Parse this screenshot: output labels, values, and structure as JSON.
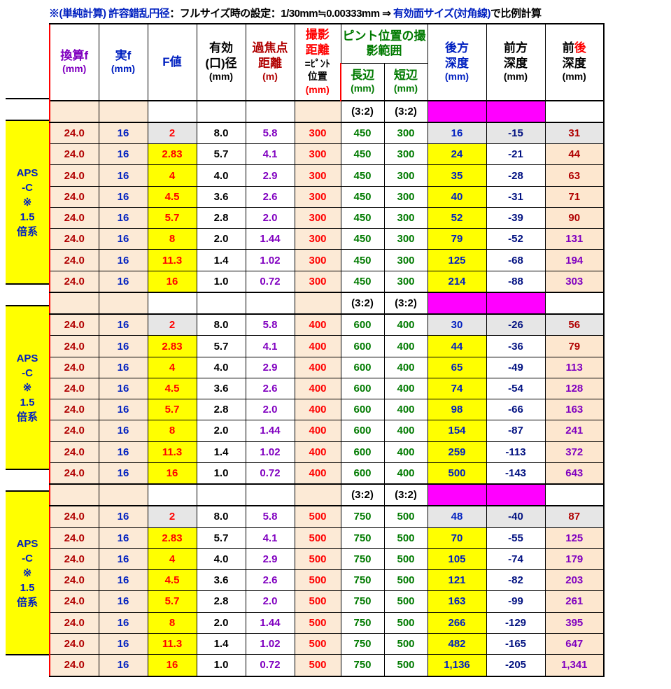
{
  "note": {
    "prefix": "※(単純計算) ",
    "mid_blue1": "許容錯乱円径",
    "mid_black": "：フルサイズ時の設定：1/30mm≒0.00333mm ⇒ ",
    "mid_blue2": "有効面サイズ(対角線)",
    "suffix": "で比例計算"
  },
  "left_label": {
    "l1": "APS",
    "l2": "-C",
    "l3": "※",
    "l4": "1.5",
    "l5": "倍系"
  },
  "headers": {
    "c0": {
      "main": "換算f",
      "sub": "(mm)"
    },
    "c1": {
      "main": "実f",
      "sub": "(mm)"
    },
    "c2": {
      "main": "F値",
      "sub": ""
    },
    "c3": {
      "main": "有効",
      "mid": "(口)径",
      "sub": "(mm)"
    },
    "c4": {
      "main": "過焦点",
      "mid": "距離",
      "sub": "(m)"
    },
    "c5": {
      "main": "撮影",
      "mid": "距離",
      "mid2": "=ﾋﾟﾝﾄ",
      "mid3": "位置",
      "sub": "(mm)"
    },
    "c67top": "ピント位置の撮影範囲",
    "c6": {
      "main": "長辺",
      "sub": "(mm)"
    },
    "c7": {
      "main": "短辺",
      "sub": "(mm)"
    },
    "c8": {
      "main": "後方",
      "mid": "深度",
      "sub": "(mm)"
    },
    "c9": {
      "main": "前方",
      "mid": "深度",
      "sub": "(mm)"
    },
    "c10": {
      "pre": "前",
      "post": "後",
      "mid": "深度",
      "sub": "(mm)"
    }
  },
  "aspect": "(3:2)",
  "sections": [
    {
      "rows": [
        {
          "k": "24.0",
          "f": "16",
          "F": "2",
          "Fbg": "ltgrey",
          "ap": "8.0",
          "hyp": "5.8",
          "dist": "300",
          "L": "450",
          "S": "300",
          "back": "16",
          "bbg": "ltgrey",
          "front": "-15",
          "fbg": "ltgrey",
          "tot": "31",
          "tc": "darkred",
          "tbg": "ltgrey"
        },
        {
          "k": "24.0",
          "f": "16",
          "F": "2.83",
          "Fbg": "yellow",
          "ap": "5.7",
          "hyp": "4.1",
          "dist": "300",
          "L": "450",
          "S": "300",
          "back": "24",
          "bbg": "yellow",
          "front": "-21",
          "fbg": "white",
          "tot": "44",
          "tc": "darkred",
          "tbg": "peach"
        },
        {
          "k": "24.0",
          "f": "16",
          "F": "4",
          "Fbg": "yellow",
          "ap": "4.0",
          "hyp": "2.9",
          "dist": "300",
          "L": "450",
          "S": "300",
          "back": "35",
          "bbg": "yellow",
          "front": "-28",
          "fbg": "white",
          "tot": "63",
          "tc": "darkred",
          "tbg": "peach"
        },
        {
          "k": "24.0",
          "f": "16",
          "F": "4.5",
          "Fbg": "yellow",
          "ap": "3.6",
          "hyp": "2.6",
          "dist": "300",
          "L": "450",
          "S": "300",
          "back": "40",
          "bbg": "yellow",
          "front": "-31",
          "fbg": "white",
          "tot": "71",
          "tc": "darkred",
          "tbg": "peach"
        },
        {
          "k": "24.0",
          "f": "16",
          "F": "5.7",
          "Fbg": "yellow",
          "ap": "2.8",
          "hyp": "2.0",
          "dist": "300",
          "L": "450",
          "S": "300",
          "back": "52",
          "bbg": "yellow",
          "front": "-39",
          "fbg": "white",
          "tot": "90",
          "tc": "darkred",
          "tbg": "peach"
        },
        {
          "k": "24.0",
          "f": "16",
          "F": "8",
          "Fbg": "yellow",
          "ap": "2.0",
          "hyp": "1.44",
          "dist": "300",
          "L": "450",
          "S": "300",
          "back": "79",
          "bbg": "yellow",
          "front": "-52",
          "fbg": "white",
          "tot": "131",
          "tc": "purple",
          "tbg": "peach"
        },
        {
          "k": "24.0",
          "f": "16",
          "F": "11.3",
          "Fbg": "yellow",
          "ap": "1.4",
          "hyp": "1.02",
          "dist": "300",
          "L": "450",
          "S": "300",
          "back": "125",
          "bbg": "yellow",
          "front": "-68",
          "fbg": "white",
          "tot": "194",
          "tc": "purple",
          "tbg": "peach"
        },
        {
          "k": "24.0",
          "f": "16",
          "F": "16",
          "Fbg": "yellow",
          "ap": "1.0",
          "hyp": "0.72",
          "dist": "300",
          "L": "450",
          "S": "300",
          "back": "214",
          "bbg": "yellow",
          "front": "-88",
          "fbg": "white",
          "tot": "303",
          "tc": "purple",
          "tbg": "peach"
        }
      ]
    },
    {
      "rows": [
        {
          "k": "24.0",
          "f": "16",
          "F": "2",
          "Fbg": "ltgrey",
          "ap": "8.0",
          "hyp": "5.8",
          "dist": "400",
          "L": "600",
          "S": "400",
          "back": "30",
          "bbg": "ltgrey",
          "front": "-26",
          "fbg": "ltgrey",
          "tot": "56",
          "tc": "darkred",
          "tbg": "ltgrey"
        },
        {
          "k": "24.0",
          "f": "16",
          "F": "2.83",
          "Fbg": "yellow",
          "ap": "5.7",
          "hyp": "4.1",
          "dist": "400",
          "L": "600",
          "S": "400",
          "back": "44",
          "bbg": "yellow",
          "front": "-36",
          "fbg": "white",
          "tot": "79",
          "tc": "darkred",
          "tbg": "peach"
        },
        {
          "k": "24.0",
          "f": "16",
          "F": "4",
          "Fbg": "yellow",
          "ap": "4.0",
          "hyp": "2.9",
          "dist": "400",
          "L": "600",
          "S": "400",
          "back": "65",
          "bbg": "yellow",
          "front": "-49",
          "fbg": "white",
          "tot": "113",
          "tc": "purple",
          "tbg": "peach"
        },
        {
          "k": "24.0",
          "f": "16",
          "F": "4.5",
          "Fbg": "yellow",
          "ap": "3.6",
          "hyp": "2.6",
          "dist": "400",
          "L": "600",
          "S": "400",
          "back": "74",
          "bbg": "yellow",
          "front": "-54",
          "fbg": "white",
          "tot": "128",
          "tc": "purple",
          "tbg": "peach"
        },
        {
          "k": "24.0",
          "f": "16",
          "F": "5.7",
          "Fbg": "yellow",
          "ap": "2.8",
          "hyp": "2.0",
          "dist": "400",
          "L": "600",
          "S": "400",
          "back": "98",
          "bbg": "yellow",
          "front": "-66",
          "fbg": "white",
          "tot": "163",
          "tc": "purple",
          "tbg": "peach"
        },
        {
          "k": "24.0",
          "f": "16",
          "F": "8",
          "Fbg": "yellow",
          "ap": "2.0",
          "hyp": "1.44",
          "dist": "400",
          "L": "600",
          "S": "400",
          "back": "154",
          "bbg": "yellow",
          "front": "-87",
          "fbg": "white",
          "tot": "241",
          "tc": "purple",
          "tbg": "peach"
        },
        {
          "k": "24.0",
          "f": "16",
          "F": "11.3",
          "Fbg": "yellow",
          "ap": "1.4",
          "hyp": "1.02",
          "dist": "400",
          "L": "600",
          "S": "400",
          "back": "259",
          "bbg": "yellow",
          "front": "-113",
          "fbg": "white",
          "tot": "372",
          "tc": "purple",
          "tbg": "peach"
        },
        {
          "k": "24.0",
          "f": "16",
          "F": "16",
          "Fbg": "yellow",
          "ap": "1.0",
          "hyp": "0.72",
          "dist": "400",
          "L": "600",
          "S": "400",
          "back": "500",
          "bbg": "yellow",
          "front": "-143",
          "fbg": "white",
          "tot": "643",
          "tc": "purple",
          "tbg": "peach"
        }
      ]
    },
    {
      "rows": [
        {
          "k": "24.0",
          "f": "16",
          "F": "2",
          "Fbg": "ltgrey",
          "ap": "8.0",
          "hyp": "5.8",
          "dist": "500",
          "L": "750",
          "S": "500",
          "back": "48",
          "bbg": "ltgrey",
          "front": "-40",
          "fbg": "ltgrey",
          "tot": "87",
          "tc": "darkred",
          "tbg": "ltgrey"
        },
        {
          "k": "24.0",
          "f": "16",
          "F": "2.83",
          "Fbg": "yellow",
          "ap": "5.7",
          "hyp": "4.1",
          "dist": "500",
          "L": "750",
          "S": "500",
          "back": "70",
          "bbg": "yellow",
          "front": "-55",
          "fbg": "white",
          "tot": "125",
          "tc": "purple",
          "tbg": "peach"
        },
        {
          "k": "24.0",
          "f": "16",
          "F": "4",
          "Fbg": "yellow",
          "ap": "4.0",
          "hyp": "2.9",
          "dist": "500",
          "L": "750",
          "S": "500",
          "back": "105",
          "bbg": "yellow",
          "front": "-74",
          "fbg": "white",
          "tot": "179",
          "tc": "purple",
          "tbg": "peach"
        },
        {
          "k": "24.0",
          "f": "16",
          "F": "4.5",
          "Fbg": "yellow",
          "ap": "3.6",
          "hyp": "2.6",
          "dist": "500",
          "L": "750",
          "S": "500",
          "back": "121",
          "bbg": "yellow",
          "front": "-82",
          "fbg": "white",
          "tot": "203",
          "tc": "purple",
          "tbg": "peach"
        },
        {
          "k": "24.0",
          "f": "16",
          "F": "5.7",
          "Fbg": "yellow",
          "ap": "2.8",
          "hyp": "2.0",
          "dist": "500",
          "L": "750",
          "S": "500",
          "back": "163",
          "bbg": "yellow",
          "front": "-99",
          "fbg": "white",
          "tot": "261",
          "tc": "purple",
          "tbg": "peach"
        },
        {
          "k": "24.0",
          "f": "16",
          "F": "8",
          "Fbg": "yellow",
          "ap": "2.0",
          "hyp": "1.44",
          "dist": "500",
          "L": "750",
          "S": "500",
          "back": "266",
          "bbg": "yellow",
          "front": "-129",
          "fbg": "white",
          "tot": "395",
          "tc": "purple",
          "tbg": "peach"
        },
        {
          "k": "24.0",
          "f": "16",
          "F": "11.3",
          "Fbg": "yellow",
          "ap": "1.4",
          "hyp": "1.02",
          "dist": "500",
          "L": "750",
          "S": "500",
          "back": "482",
          "bbg": "yellow",
          "front": "-165",
          "fbg": "white",
          "tot": "647",
          "tc": "purple",
          "tbg": "peach"
        },
        {
          "k": "24.0",
          "f": "16",
          "F": "16",
          "Fbg": "yellow",
          "ap": "1.0",
          "hyp": "0.72",
          "dist": "500",
          "L": "750",
          "S": "500",
          "back": "1,136",
          "bbg": "yellow",
          "front": "-205",
          "fbg": "white",
          "tot": "1,341",
          "tc": "purple",
          "tbg": "peach"
        }
      ]
    }
  ]
}
